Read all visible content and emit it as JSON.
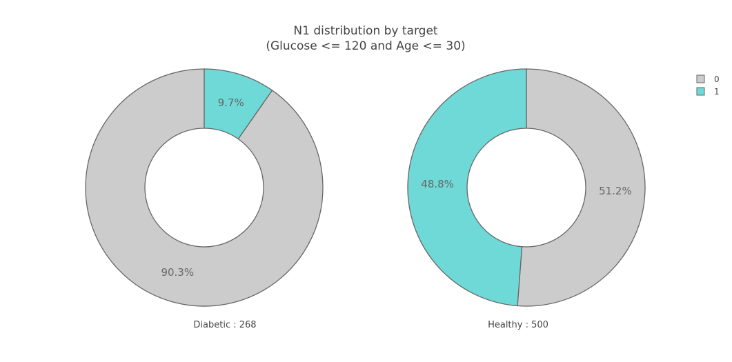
{
  "chart_data": {
    "type": "pie",
    "title": "N1 distribution by target",
    "subtitle": "(Glucose <= 120 and Age <= 30)",
    "legend": {
      "placement": "top-right",
      "entries": [
        {
          "name": "0",
          "color": "#cccccc"
        },
        {
          "name": "1",
          "color": "#6ed9d6"
        }
      ]
    },
    "charts": [
      {
        "label": "Diabetic : 268",
        "hole": 0.5,
        "slices": [
          {
            "name": "0",
            "value": 90.3,
            "label": "90.3%",
            "color": "#cccccc"
          },
          {
            "name": "1",
            "value": 9.7,
            "label": "9.7%",
            "color": "#6ed9d6"
          }
        ]
      },
      {
        "label": "Healthy : 500",
        "hole": 0.5,
        "slices": [
          {
            "name": "0",
            "value": 51.2,
            "label": "51.2%",
            "color": "#cccccc"
          },
          {
            "name": "1",
            "value": 48.8,
            "label": "48.8%",
            "color": "#6ed9d6"
          }
        ]
      }
    ]
  }
}
